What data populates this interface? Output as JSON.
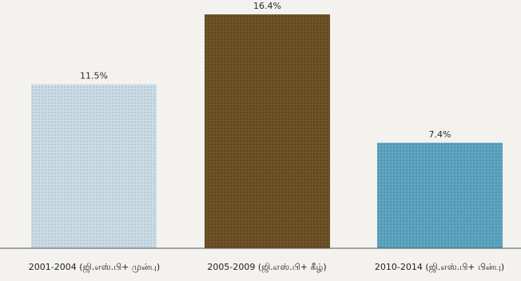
{
  "chart_data": {
    "type": "bar",
    "categories": [
      "2001-2004 (ஜி.எஸ்.பி+ முன்பு)",
      "2005-2009 (ஜி.எஸ்.பி+ கீழ்)",
      "2010-2014 (ஜி.எஸ்.பி+ பின்பு)"
    ],
    "values": [
      11.5,
      16.4,
      7.4
    ],
    "value_labels": [
      "11.5%",
      "16.4%",
      "7.4%"
    ],
    "colors": [
      "#c9dbe6",
      "#6b4e22",
      "#5aa3c0"
    ],
    "ylim": [
      0,
      16.4
    ],
    "grid": false,
    "legend": "none"
  }
}
